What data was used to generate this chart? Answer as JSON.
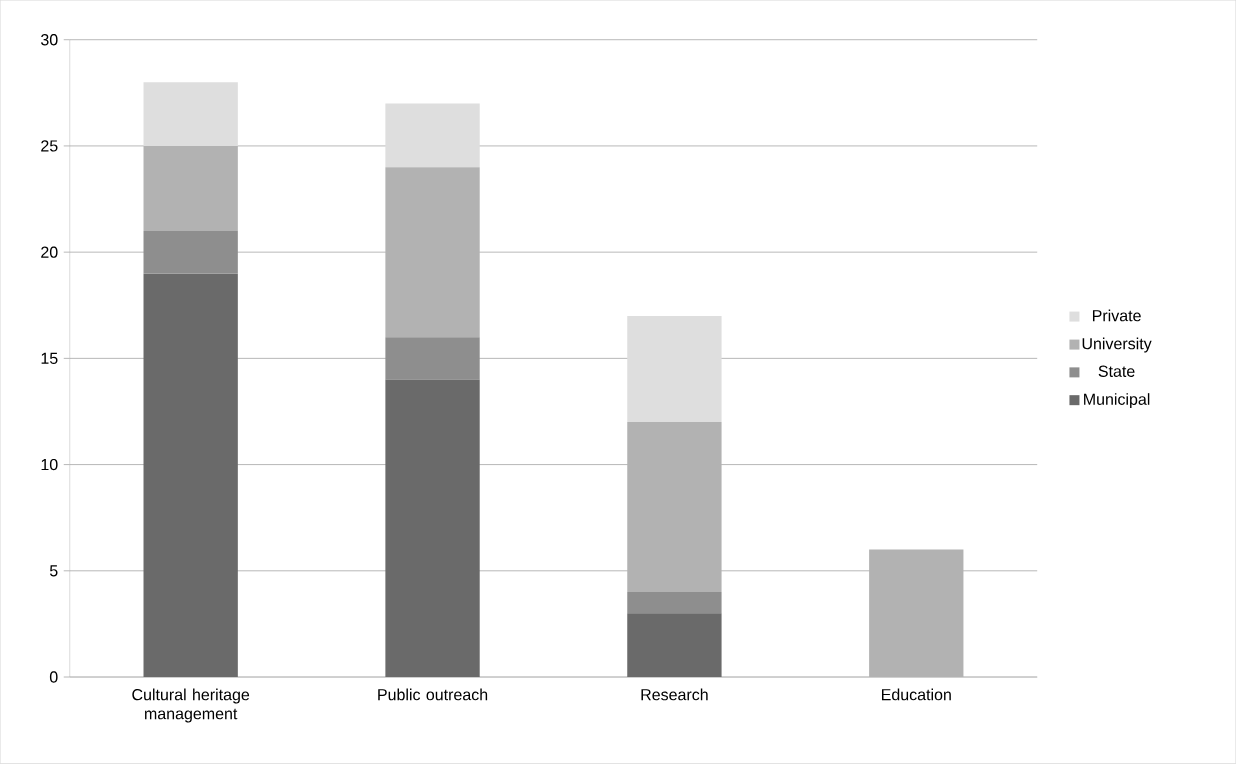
{
  "chart_data": {
    "type": "bar",
    "stacked": true,
    "categories": [
      "Cultural heritage management",
      "Public outreach",
      "Research",
      "Education"
    ],
    "series": [
      {
        "name": "Municipal",
        "color": "#6a6a6a",
        "values": [
          19,
          14,
          3,
          0
        ]
      },
      {
        "name": "State",
        "color": "#8e8e8e",
        "values": [
          2,
          2,
          1,
          0
        ]
      },
      {
        "name": "University",
        "color": "#b2b2b2",
        "values": [
          4,
          8,
          8,
          6
        ]
      },
      {
        "name": "Private",
        "color": "#dedede",
        "values": [
          3,
          3,
          5,
          0
        ]
      }
    ],
    "ylim": [
      0,
      30
    ],
    "yticks": [
      0,
      5,
      10,
      15,
      20,
      25,
      30
    ],
    "grid": "y",
    "legend": "right"
  }
}
